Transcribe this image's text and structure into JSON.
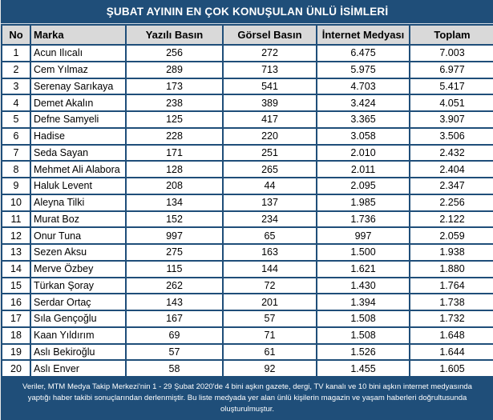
{
  "colors": {
    "accent_blue": "#1F4E79",
    "header_gray": "#D9D9D9",
    "row_white": "#FFFFFF",
    "text_black": "#000000",
    "text_white": "#FFFFFF"
  },
  "title": "ŞUBAT AYININ EN ÇOK KONUŞULAN ÜNLÜ İSİMLERİ",
  "table": {
    "columns": [
      "No",
      "Marka",
      "Yazılı Basın",
      "Görsel Basın",
      "İnternet Medyası",
      "Toplam"
    ],
    "rows": [
      {
        "no": "1",
        "marka": "Acun Ilıcalı",
        "yazili": "256",
        "gorsel": "272",
        "internet": "6.475",
        "toplam": "7.003"
      },
      {
        "no": "2",
        "marka": "Cem Yılmaz",
        "yazili": "289",
        "gorsel": "713",
        "internet": "5.975",
        "toplam": "6.977"
      },
      {
        "no": "3",
        "marka": "Serenay Sarıkaya",
        "yazili": "173",
        "gorsel": "541",
        "internet": "4.703",
        "toplam": "5.417"
      },
      {
        "no": "4",
        "marka": "Demet Akalın",
        "yazili": "238",
        "gorsel": "389",
        "internet": "3.424",
        "toplam": "4.051"
      },
      {
        "no": "5",
        "marka": "Defne Samyeli",
        "yazili": "125",
        "gorsel": "417",
        "internet": "3.365",
        "toplam": "3.907"
      },
      {
        "no": "6",
        "marka": "Hadise",
        "yazili": "228",
        "gorsel": "220",
        "internet": "3.058",
        "toplam": "3.506"
      },
      {
        "no": "7",
        "marka": "Seda Sayan",
        "yazili": "171",
        "gorsel": "251",
        "internet": "2.010",
        "toplam": "2.432"
      },
      {
        "no": "8",
        "marka": "Mehmet Ali Alabora",
        "yazili": "128",
        "gorsel": "265",
        "internet": "2.011",
        "toplam": "2.404"
      },
      {
        "no": "9",
        "marka": "Haluk Levent",
        "yazili": "208",
        "gorsel": "44",
        "internet": "2.095",
        "toplam": "2.347"
      },
      {
        "no": "10",
        "marka": "Aleyna Tilki",
        "yazili": "134",
        "gorsel": "137",
        "internet": "1.985",
        "toplam": "2.256"
      },
      {
        "no": "11",
        "marka": "Murat Boz",
        "yazili": "152",
        "gorsel": "234",
        "internet": "1.736",
        "toplam": "2.122"
      },
      {
        "no": "12",
        "marka": "Onur Tuna",
        "yazili": "997",
        "gorsel": "65",
        "internet": "997",
        "toplam": "2.059"
      },
      {
        "no": "13",
        "marka": "Sezen Aksu",
        "yazili": "275",
        "gorsel": "163",
        "internet": "1.500",
        "toplam": "1.938"
      },
      {
        "no": "14",
        "marka": "Merve Özbey",
        "yazili": "115",
        "gorsel": "144",
        "internet": "1.621",
        "toplam": "1.880"
      },
      {
        "no": "15",
        "marka": "Türkan Şoray",
        "yazili": "262",
        "gorsel": "72",
        "internet": "1.430",
        "toplam": "1.764"
      },
      {
        "no": "16",
        "marka": "Serdar Ortaç",
        "yazili": "143",
        "gorsel": "201",
        "internet": "1.394",
        "toplam": "1.738"
      },
      {
        "no": "17",
        "marka": "Sıla Gençoğlu",
        "yazili": "167",
        "gorsel": "57",
        "internet": "1.508",
        "toplam": "1.732"
      },
      {
        "no": "18",
        "marka": "Kaan Yıldırım",
        "yazili": "69",
        "gorsel": "71",
        "internet": "1.508",
        "toplam": "1.648"
      },
      {
        "no": "19",
        "marka": "Aslı Bekiroğlu",
        "yazili": "57",
        "gorsel": "61",
        "internet": "1.526",
        "toplam": "1.644"
      },
      {
        "no": "20",
        "marka": "Aslı Enver",
        "yazili": "58",
        "gorsel": "92",
        "internet": "1.455",
        "toplam": "1.605"
      }
    ]
  },
  "footer": {
    "lines": [
      "Veriler, MTM Medya Takip Merkezi'nin 1 - 29 Şubat 2020'de 4 bini aşkın gazete, dergi, TV kanalı ve 10 bini aşkın internet medyasında",
      "yaptığı haber takibi sonuçlarından derlenmiştir.  Bu liste medyada yer alan ünlü kişilerin magazin ve yaşam haberleri doğrultusunda",
      "oluşturulmuştur."
    ]
  }
}
